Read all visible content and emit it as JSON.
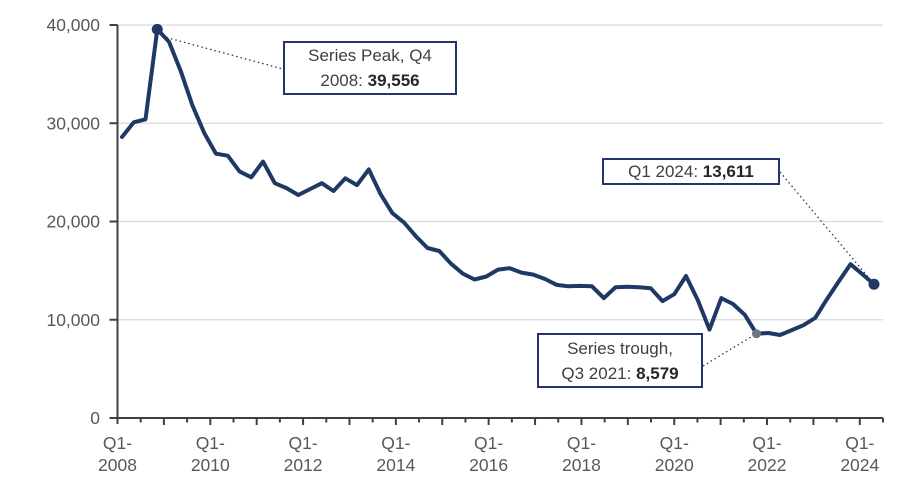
{
  "chart_data": {
    "type": "line",
    "title": "",
    "frequency": "quarterly",
    "x_range": "Q1 2008 to Q1 2024",
    "categories": [
      "Q1 2008",
      "Q2 2008",
      "Q3 2008",
      "Q4 2008",
      "Q1 2009",
      "Q2 2009",
      "Q3 2009",
      "Q4 2009",
      "Q1 2010",
      "Q2 2010",
      "Q3 2010",
      "Q4 2010",
      "Q1 2011",
      "Q2 2011",
      "Q3 2011",
      "Q4 2011",
      "Q1 2012",
      "Q2 2012",
      "Q3 2012",
      "Q4 2012",
      "Q1 2013",
      "Q2 2013",
      "Q3 2013",
      "Q4 2013",
      "Q1 2014",
      "Q2 2014",
      "Q3 2014",
      "Q4 2014",
      "Q1 2015",
      "Q2 2015",
      "Q3 2015",
      "Q4 2015",
      "Q1 2016",
      "Q2 2016",
      "Q3 2016",
      "Q4 2016",
      "Q1 2017",
      "Q2 2017",
      "Q3 2017",
      "Q4 2017",
      "Q1 2018",
      "Q2 2018",
      "Q3 2018",
      "Q4 2018",
      "Q1 2019",
      "Q2 2019",
      "Q3 2019",
      "Q4 2019",
      "Q1 2020",
      "Q2 2020",
      "Q3 2020",
      "Q4 2020",
      "Q1 2021",
      "Q2 2021",
      "Q3 2021",
      "Q4 2021",
      "Q1 2022",
      "Q2 2022",
      "Q3 2022",
      "Q4 2022",
      "Q1 2023",
      "Q2 2023",
      "Q3 2023",
      "Q4 2023",
      "Q1 2024"
    ],
    "values": [
      28600,
      30100,
      30400,
      39556,
      38300,
      35300,
      31800,
      29000,
      26900,
      26700,
      25100,
      24500,
      26100,
      23900,
      23400,
      22700,
      23300,
      23900,
      23100,
      24400,
      23700,
      25300,
      22800,
      20850,
      19900,
      18500,
      17300,
      17000,
      15700,
      14700,
      14100,
      14400,
      15100,
      15250,
      14800,
      14600,
      14150,
      13550,
      13400,
      13450,
      13400,
      12200,
      13300,
      13350,
      13300,
      13200,
      11900,
      12600,
      14450,
      12000,
      9000,
      12200,
      11600,
      10500,
      8579,
      8650,
      8450,
      8950,
      9450,
      10200,
      12100,
      13900,
      15650,
      14650,
      13611
    ],
    "ylim": [
      0,
      40000
    ],
    "y_tick_values": [
      0,
      10000,
      20000,
      30000,
      40000
    ],
    "y_tick_labels": [
      "0",
      "10,000",
      "20,000",
      "30,000",
      "40,000"
    ],
    "x_tick_prefix": "Q1-",
    "x_tick_years": [
      "2008",
      "2010",
      "2012",
      "2014",
      "2016",
      "2018",
      "2020",
      "2022",
      "2024"
    ],
    "grid": "horizontal",
    "legend": "none",
    "annotations": [
      {
        "id": "peak",
        "index": 3,
        "label_lines": [
          "Series Peak, Q4",
          "2008: "
        ],
        "value": "39,556",
        "marker": "navy"
      },
      {
        "id": "trough",
        "index": 54,
        "label_lines": [
          "Series trough,",
          "Q3 2021: "
        ],
        "value": "8,579",
        "marker": "gray"
      },
      {
        "id": "latest",
        "index": 64,
        "label_lines": [
          "Q1 2024: "
        ],
        "value": "13,611",
        "marker": "navy"
      }
    ],
    "colors": {
      "line": "#1f3864",
      "grid": "#d9d9d9",
      "axis": "#404040",
      "tick_label": "#595959",
      "annotation_border": "#24356b",
      "annotation_text": "#404040",
      "trough_marker": "#6e7582",
      "background": "#ffffff"
    }
  }
}
